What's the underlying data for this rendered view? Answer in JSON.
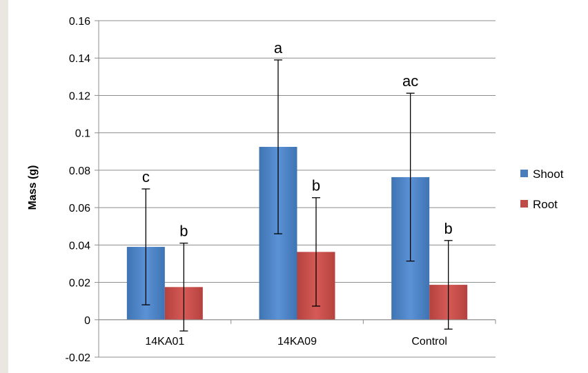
{
  "chart_data": {
    "type": "bar",
    "ylabel": "Mass (g)",
    "ylim": [
      -0.02,
      0.16
    ],
    "yticks": [
      "-0.02",
      "0",
      "0.02",
      "0.04",
      "0.06",
      "0.08",
      "0.1",
      "0.12",
      "0.14",
      "0.16"
    ],
    "ytick_values": [
      -0.02,
      0,
      0.02,
      0.04,
      0.06,
      0.08,
      0.1,
      0.12,
      0.14,
      0.16
    ],
    "categories": [
      "14KA01",
      "14KA09",
      "Control"
    ],
    "grid": true,
    "legend_position": "right",
    "series": [
      {
        "name": "Shoot",
        "color": "#4a7ebb",
        "values": [
          0.039,
          0.0925,
          0.0763
        ],
        "error": [
          0.031,
          0.0465,
          0.0449
        ],
        "letters": [
          "c",
          "a",
          "ac"
        ]
      },
      {
        "name": "Root",
        "color": "#be4b48",
        "values": [
          0.0175,
          0.0363,
          0.0187
        ],
        "error": [
          0.0235,
          0.029,
          0.0237
        ],
        "letters": [
          "b",
          "b",
          "b"
        ]
      }
    ]
  }
}
